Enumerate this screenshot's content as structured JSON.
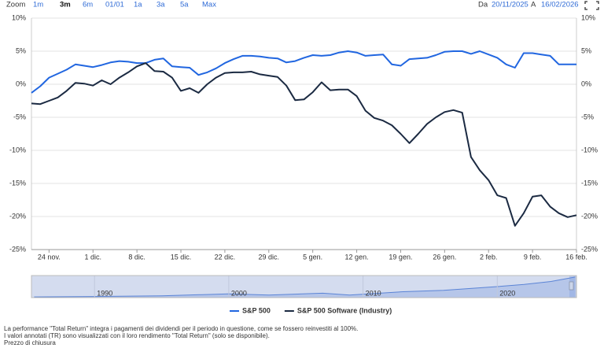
{
  "toolbar": {
    "zoom_label": "Zoom",
    "buttons": [
      "1m",
      "3m",
      "6m",
      "01/01",
      "1a",
      "3a",
      "5a",
      "Max"
    ],
    "from_label": "Da",
    "from": "20/11/2025",
    "to_label": "A",
    "to": "16/02/2026"
  },
  "chart_data": [
    {
      "type": "line",
      "categories": [
        null,
        null,
        "24 nov.",
        null,
        null,
        null,
        null,
        "1 dic.",
        null,
        null,
        null,
        null,
        "8 dic.",
        null,
        null,
        null,
        null,
        "15 dic.",
        null,
        null,
        null,
        null,
        "22 dic.",
        null,
        null,
        null,
        null,
        "29 dic.",
        null,
        null,
        null,
        null,
        "5 gen.",
        null,
        null,
        null,
        null,
        "12 gen.",
        null,
        null,
        null,
        null,
        "19 gen.",
        null,
        null,
        null,
        null,
        "26 gen.",
        null,
        null,
        null,
        null,
        "2 feb.",
        null,
        null,
        null,
        null,
        "9 feb.",
        null,
        null,
        null,
        null,
        "16 feb."
      ],
      "series": [
        {
          "name": "S&P 500",
          "color": "#2166e0",
          "values": [
            -1.3,
            -0.3,
            1.0,
            1.6,
            2.2,
            3.0,
            2.8,
            2.6,
            2.9,
            3.3,
            3.5,
            3.4,
            3.2,
            3.2,
            3.7,
            3.9,
            2.7,
            2.6,
            2.5,
            1.4,
            1.8,
            2.4,
            3.2,
            3.8,
            4.3,
            4.3,
            4.2,
            4.0,
            3.9,
            3.3,
            3.5,
            4.0,
            4.4,
            4.3,
            4.4,
            4.8,
            5.0,
            4.8,
            4.3,
            4.4,
            4.5,
            3.0,
            2.8,
            3.8,
            3.9,
            4.0,
            4.4,
            4.9,
            5.0,
            5.0,
            4.6,
            5.0,
            4.5,
            4.0,
            3.0,
            2.5,
            4.7,
            4.7,
            4.5,
            4.3,
            3.0,
            3.0,
            3.0
          ]
        },
        {
          "name": "S&P 500 Software (Industry)",
          "color": "#1b2a42",
          "values": [
            -2.9,
            -3.0,
            -2.5,
            -2.0,
            -1.0,
            0.2,
            0.1,
            -0.2,
            0.6,
            0.0,
            1.0,
            1.8,
            2.7,
            3.2,
            2.0,
            1.9,
            1.0,
            -1.0,
            -0.6,
            -1.3,
            0.0,
            1.0,
            1.7,
            1.8,
            1.8,
            1.9,
            1.5,
            1.3,
            1.1,
            -0.2,
            -2.4,
            -2.3,
            -1.2,
            0.3,
            -0.9,
            -0.8,
            -0.8,
            -1.8,
            -4.0,
            -5.1,
            -5.5,
            -6.2,
            -7.5,
            -8.9,
            -7.5,
            -6.0,
            -5.0,
            -4.2,
            -3.9,
            -4.3,
            -11.0,
            -13.0,
            -14.5,
            -16.8,
            -17.2,
            -21.4,
            -19.5,
            -17.0,
            -16.8,
            -18.5,
            -19.5,
            -20.1,
            -19.8
          ]
        }
      ],
      "ylim": [
        -25,
        10
      ],
      "yticks": [
        {
          "value": 10,
          "label": "10%"
        },
        {
          "value": 5,
          "label": "5%"
        },
        {
          "value": 0,
          "label": "0%"
        },
        {
          "value": -5,
          "label": "-5%"
        },
        {
          "value": -10,
          "label": "-10%"
        },
        {
          "value": -15,
          "label": "-15%"
        },
        {
          "value": -20,
          "label": "-20%"
        },
        {
          "value": -25,
          "label": "-25%"
        }
      ],
      "grid": true,
      "legend": "bottom"
    },
    {
      "type": "area",
      "color": "#5b84d6",
      "x": [
        1985.5,
        1990,
        1995,
        2000,
        2003,
        2007,
        2009,
        2013,
        2016,
        2020,
        2022,
        2024,
        2025.8
      ],
      "values": [
        1,
        1.5,
        2.5,
        5,
        3.5,
        6,
        3.5,
        8,
        10,
        15,
        18,
        22,
        28
      ],
      "xlim": [
        1985.3,
        2025.9
      ],
      "ylim": [
        0,
        30
      ],
      "xticks": [
        1990,
        2000,
        2010,
        2020
      ]
    }
  ],
  "notes": [
    "La performance \"Total Return\" integra i pagamenti dei dividendi per il periodo in questione, come se fossero reinvestiti al 100%.",
    "I valori annotati (TR) sono visualizzati con il loro rendimento \"Total Return\" (solo se disponibile).",
    "Prezzo di chiusura"
  ]
}
